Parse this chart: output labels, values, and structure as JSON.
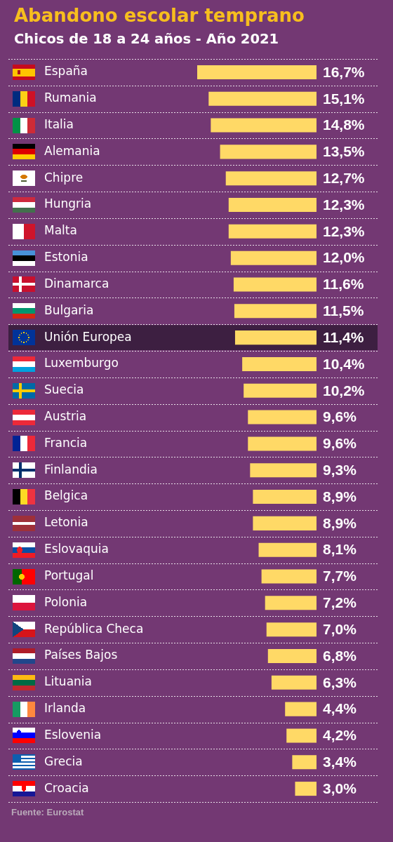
{
  "chart_data": {
    "type": "bar",
    "orientation": "horizontal",
    "title": "Abandono escolar temprano",
    "subtitle": "Chicos de 18 a 24 años - Año 2021",
    "categories": [
      "España",
      "Rumania",
      "Italia",
      "Alemania",
      "Chipre",
      "Hungria",
      "Malta",
      "Estonia",
      "Dinamarca",
      "Bulgaria",
      "Unión Europea",
      "Luxemburgo",
      "Suecia",
      "Austria",
      "Francia",
      "Finlandia",
      "Belgica",
      "Letonia",
      "Eslovaquia",
      "Portugal",
      "Polonia",
      "República Checa",
      "Países Bajos",
      "Lituania",
      "Irlanda",
      "Eslovenia",
      "Grecia",
      "Croacia"
    ],
    "values": [
      16.7,
      15.1,
      14.8,
      13.5,
      12.7,
      12.3,
      12.3,
      12.0,
      11.6,
      11.5,
      11.4,
      10.4,
      10.2,
      9.6,
      9.6,
      9.3,
      8.9,
      8.9,
      8.1,
      7.7,
      7.2,
      7.0,
      6.8,
      6.3,
      4.4,
      4.2,
      3.4,
      3.0
    ],
    "value_labels": [
      "16,7%",
      "15,1%",
      "14,8%",
      "13,5%",
      "12,7%",
      "12,3%",
      "12,3%",
      "12,0%",
      "11,6%",
      "11,5%",
      "11,4%",
      "10,4%",
      "10,2%",
      "9,6%",
      "9,6%",
      "9,3%",
      "8,9%",
      "8,9%",
      "8,1%",
      "7,7%",
      "7,2%",
      "7,0%",
      "6,8%",
      "6,3%",
      "4,4%",
      "4,2%",
      "3,4%",
      "3,0%"
    ],
    "color": "#ffd966",
    "tick_labels": "y",
    "grid": "y",
    "bands": [
      {
        "axis": "y",
        "from": "Unión Europea",
        "to": "Unión Europea",
        "color": "#3d1f41"
      }
    ],
    "annotations": [
      "Fuente: Eurostat"
    ]
  }
}
